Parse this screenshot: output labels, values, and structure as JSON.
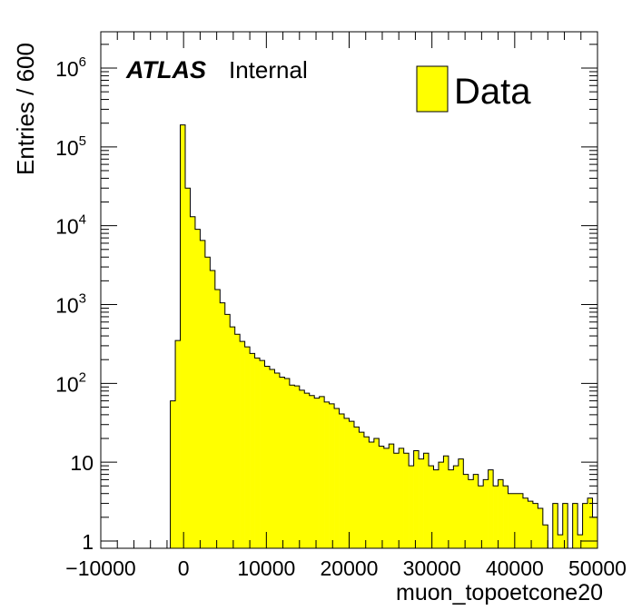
{
  "chart_data": {
    "type": "histogram",
    "xlabel": "muon_topoetcone20",
    "ylabel": "Entries / 600",
    "xlim": [
      -10000,
      50000
    ],
    "ylog": true,
    "y_axis_min_decade": 1,
    "y_axis_max": 2800000,
    "bin_width": 600,
    "x_ticks": [
      "−10000",
      "0",
      "10000",
      "20000",
      "30000",
      "40000",
      "50000"
    ],
    "y_ticks": [
      {
        "base": "1",
        "exp": ""
      },
      {
        "base": "10",
        "exp": ""
      },
      {
        "base": "10",
        "exp": "2"
      },
      {
        "base": "10",
        "exp": "3"
      },
      {
        "base": "10",
        "exp": "4"
      },
      {
        "base": "10",
        "exp": "5"
      },
      {
        "base": "10",
        "exp": "6"
      }
    ],
    "legend": {
      "entry": "Data",
      "color": "#ffff00",
      "position": "top-right"
    },
    "atlas_label": {
      "bold": "ATLAS",
      "normal": "Internal"
    },
    "fill_color": "#ffff00",
    "line_color": "#000000",
    "bins": [
      {
        "x": -2200,
        "v": 0.8
      },
      {
        "x": -1600,
        "v": 60
      },
      {
        "x": -1000,
        "v": 350
      },
      {
        "x": -400,
        "v": 190000
      },
      {
        "x": 200,
        "v": 30000
      },
      {
        "x": 800,
        "v": 13000
      },
      {
        "x": 1400,
        "v": 9000
      },
      {
        "x": 2000,
        "v": 6500
      },
      {
        "x": 2600,
        "v": 4000
      },
      {
        "x": 3200,
        "v": 2700
      },
      {
        "x": 3800,
        "v": 1550
      },
      {
        "x": 4400,
        "v": 1050
      },
      {
        "x": 5000,
        "v": 750
      },
      {
        "x": 5600,
        "v": 520
      },
      {
        "x": 6200,
        "v": 420
      },
      {
        "x": 6800,
        "v": 340
      },
      {
        "x": 7400,
        "v": 290
      },
      {
        "x": 8000,
        "v": 240
      },
      {
        "x": 8600,
        "v": 210
      },
      {
        "x": 9200,
        "v": 195
      },
      {
        "x": 9800,
        "v": 165
      },
      {
        "x": 10400,
        "v": 150
      },
      {
        "x": 11000,
        "v": 135
      },
      {
        "x": 11600,
        "v": 120
      },
      {
        "x": 12200,
        "v": 115
      },
      {
        "x": 12800,
        "v": 95
      },
      {
        "x": 13400,
        "v": 93
      },
      {
        "x": 14000,
        "v": 82
      },
      {
        "x": 14600,
        "v": 75
      },
      {
        "x": 15200,
        "v": 70
      },
      {
        "x": 15800,
        "v": 65
      },
      {
        "x": 16400,
        "v": 68
      },
      {
        "x": 17000,
        "v": 58
      },
      {
        "x": 17600,
        "v": 55
      },
      {
        "x": 18200,
        "v": 48
      },
      {
        "x": 18800,
        "v": 41
      },
      {
        "x": 19400,
        "v": 36
      },
      {
        "x": 20000,
        "v": 33
      },
      {
        "x": 20600,
        "v": 28
      },
      {
        "x": 21200,
        "v": 24
      },
      {
        "x": 21800,
        "v": 21
      },
      {
        "x": 22400,
        "v": 18
      },
      {
        "x": 23000,
        "v": 20
      },
      {
        "x": 23600,
        "v": 16
      },
      {
        "x": 24200,
        "v": 15
      },
      {
        "x": 24800,
        "v": 17
      },
      {
        "x": 25400,
        "v": 13
      },
      {
        "x": 26000,
        "v": 15
      },
      {
        "x": 26600,
        "v": 13
      },
      {
        "x": 27200,
        "v": 9
      },
      {
        "x": 27800,
        "v": 14
      },
      {
        "x": 28400,
        "v": 11
      },
      {
        "x": 29000,
        "v": 13
      },
      {
        "x": 29600,
        "v": 9
      },
      {
        "x": 30200,
        "v": 8
      },
      {
        "x": 30800,
        "v": 10
      },
      {
        "x": 31400,
        "v": 12
      },
      {
        "x": 32000,
        "v": 8
      },
      {
        "x": 32600,
        "v": 9
      },
      {
        "x": 33200,
        "v": 11
      },
      {
        "x": 33800,
        "v": 7
      },
      {
        "x": 34400,
        "v": 6
      },
      {
        "x": 35000,
        "v": 7
      },
      {
        "x": 35600,
        "v": 5
      },
      {
        "x": 36200,
        "v": 6
      },
      {
        "x": 36800,
        "v": 8
      },
      {
        "x": 37400,
        "v": 5
      },
      {
        "x": 38000,
        "v": 6
      },
      {
        "x": 38600,
        "v": 5
      },
      {
        "x": 39200,
        "v": 4
      },
      {
        "x": 39800,
        "v": 4
      },
      {
        "x": 40400,
        "v": 4
      },
      {
        "x": 41000,
        "v": 3.5
      },
      {
        "x": 41600,
        "v": 3.2
      },
      {
        "x": 42200,
        "v": 3
      },
      {
        "x": 42800,
        "v": 2.6
      },
      {
        "x": 43400,
        "v": 1.6
      },
      {
        "x": 44000,
        "v": 0.8
      },
      {
        "x": 44600,
        "v": 3
      },
      {
        "x": 45200,
        "v": 1.2
      },
      {
        "x": 45800,
        "v": 3
      },
      {
        "x": 46400,
        "v": 0.8
      },
      {
        "x": 47000,
        "v": 3
      },
      {
        "x": 47600,
        "v": 1.2
      },
      {
        "x": 48200,
        "v": 3
      },
      {
        "x": 48800,
        "v": 3.5
      },
      {
        "x": 49400,
        "v": 2
      }
    ]
  }
}
